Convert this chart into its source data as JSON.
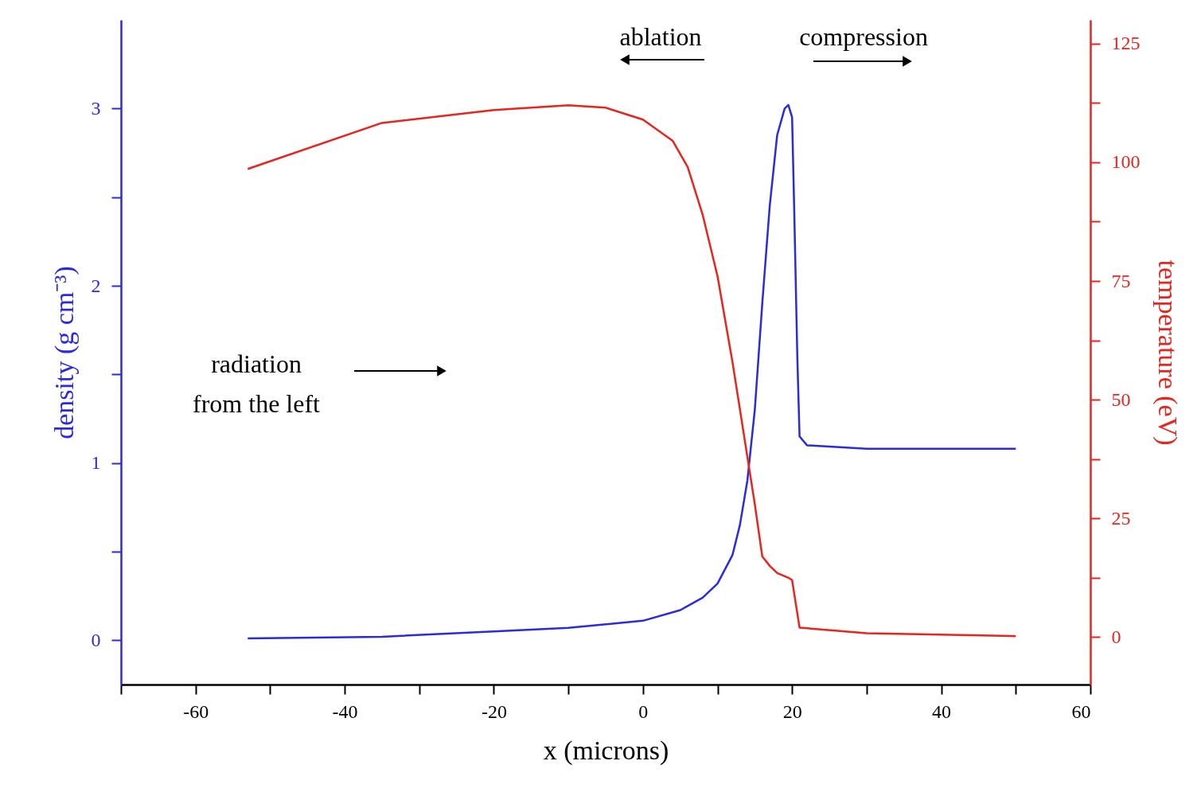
{
  "chart_data": {
    "type": "line",
    "xlabel": "x (microns)",
    "ylabel": "density (g cm⁻³)",
    "y2label": "temperature (eV)",
    "annotations": [
      "ablation",
      "compression",
      "radiation\nfrom the left"
    ],
    "xlim": [
      -70,
      60
    ],
    "xticks": [
      {
        "value": -70,
        "label": null
      },
      -60,
      {
        "value": -50,
        "label": null
      },
      -40,
      {
        "value": -30,
        "label": null
      },
      -20,
      {
        "value": -10,
        "label": null
      },
      0,
      {
        "value": 10,
        "label": null
      },
      20,
      {
        "value": 30,
        "label": null
      },
      40,
      {
        "value": 50,
        "label": null
      },
      60
    ],
    "ylim": [
      -0.25,
      3.5
    ],
    "yticks": [
      0,
      {
        "value": 0.5,
        "label": null
      },
      1,
      {
        "value": 1.5,
        "label": null
      },
      2,
      {
        "value": 2.5,
        "label": null
      },
      3
    ],
    "y2lim": [
      -10,
      130
    ],
    "y2ticks": [
      0,
      {
        "value": 12.5,
        "label": null
      },
      25,
      {
        "value": 37.5,
        "label": null
      },
      50,
      {
        "value": 62.5,
        "label": null
      },
      75,
      {
        "value": 87.5,
        "label": null
      },
      100,
      {
        "value": 112.5,
        "label": null
      },
      125
    ],
    "grid": false,
    "marker": "none",
    "line_style": "solid",
    "series": [
      {
        "color": "#2a2ae0",
        "x": [
          -53,
          -35,
          -20,
          -10,
          0,
          5,
          8,
          10,
          12,
          13,
          14,
          15,
          16,
          17,
          18,
          19,
          19.5,
          20,
          20.3,
          20.7,
          21,
          22,
          30,
          50
        ],
        "values": [
          0.01,
          0.02,
          0.05,
          0.07,
          0.11,
          0.17,
          0.24,
          0.32,
          0.48,
          0.65,
          0.9,
          1.3,
          1.9,
          2.45,
          2.85,
          3.0,
          3.02,
          2.95,
          2.4,
          1.6,
          1.15,
          1.1,
          1.08,
          1.08
        ]
      },
      {
        "color": "#e8241c",
        "axis": "y2",
        "x": [
          -53,
          -35,
          -20,
          -10,
          -5,
          0,
          4,
          6,
          8,
          10,
          12,
          13,
          14,
          15,
          16,
          17,
          18,
          19.5,
          20,
          20.5,
          21,
          30,
          50
        ],
        "values": [
          98.6,
          108.3,
          111,
          112,
          111.5,
          109,
          104.5,
          99,
          89,
          76,
          58,
          48,
          38,
          28,
          17,
          15,
          13.5,
          12.5,
          12,
          7,
          2,
          0.8,
          0.2
        ]
      }
    ]
  }
}
